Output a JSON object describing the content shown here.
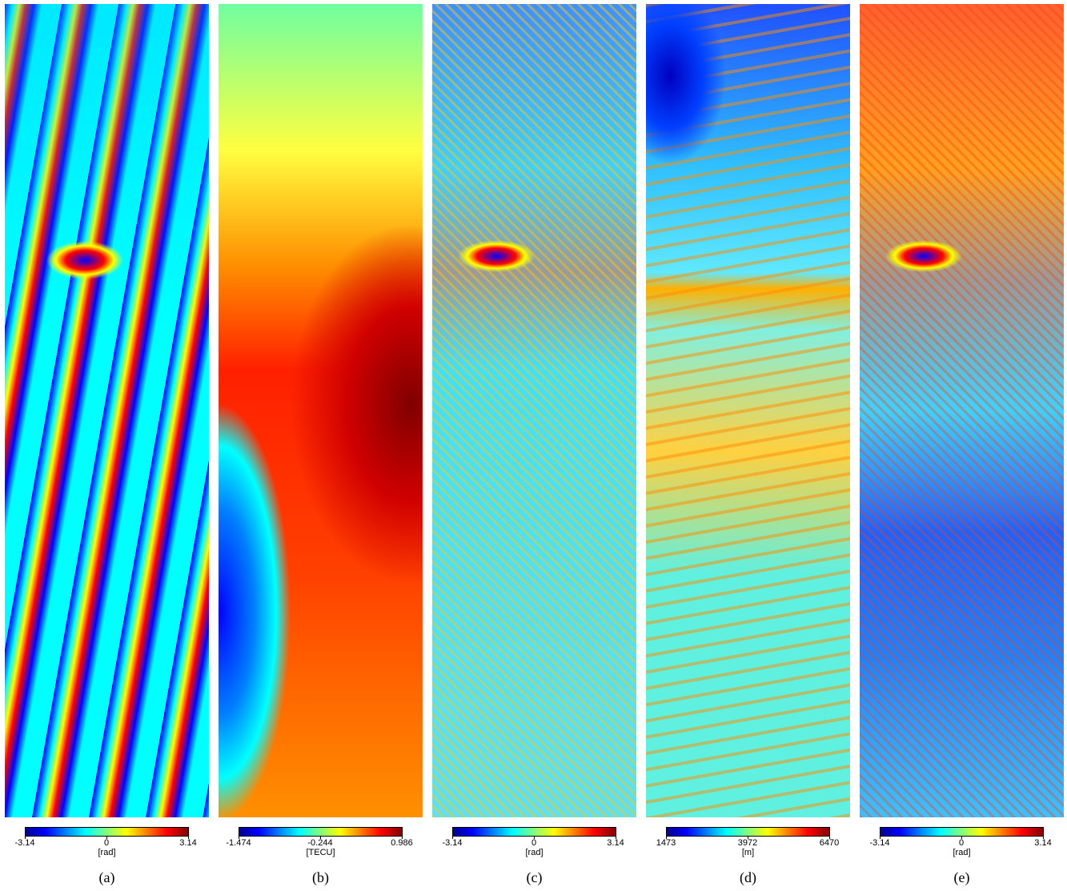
{
  "panels": [
    {
      "colorbar": {
        "ticks": [
          -3.14,
          0,
          3.14
        ],
        "unit": "[rad]"
      },
      "caption": "(a)"
    },
    {
      "colorbar": {
        "ticks": [
          -1.474,
          -0.244,
          0.986
        ],
        "unit": "[TECU]"
      },
      "caption": "(b)"
    },
    {
      "colorbar": {
        "ticks": [
          -3.14,
          0,
          3.14
        ],
        "unit": "[rad]"
      },
      "caption": "(c)"
    },
    {
      "colorbar": {
        "ticks": [
          1473,
          3972,
          6470
        ],
        "unit": "[m]"
      },
      "caption": "(d)"
    },
    {
      "colorbar": {
        "ticks": [
          -3.14,
          0,
          3.14
        ],
        "unit": "[rad]"
      },
      "caption": "(e)"
    }
  ]
}
